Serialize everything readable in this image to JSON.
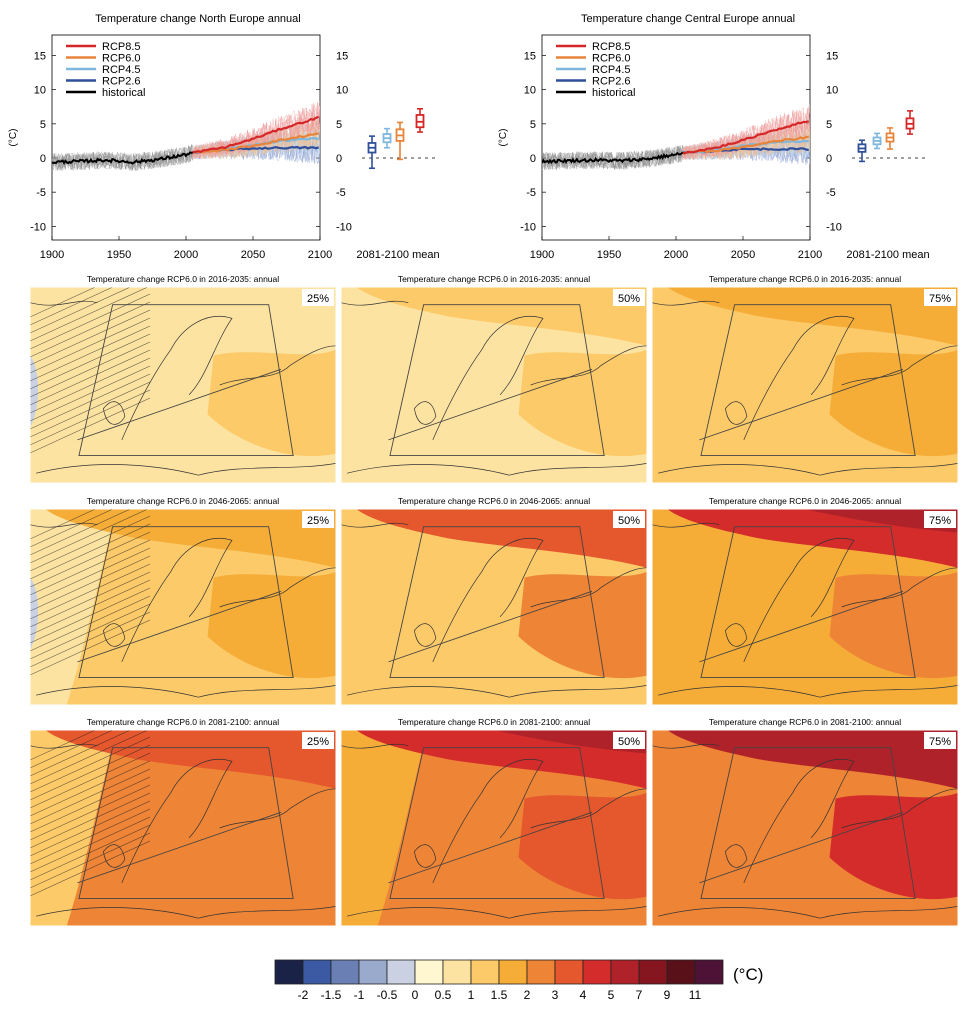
{
  "timeseries": {
    "ylabel": "(°C)",
    "yticks": [
      15,
      10,
      5,
      0,
      -5,
      -10
    ],
    "ylim": [
      -12,
      18
    ],
    "xlim": [
      1900,
      2100
    ],
    "xticks": [
      "1900",
      "1950",
      "2000",
      "2050",
      "2100"
    ],
    "box_label": "2081-2100 mean",
    "legend": [
      {
        "label": "RCP8.5",
        "color": "#d62728"
      },
      {
        "label": "RCP6.0",
        "color": "#e8843a"
      },
      {
        "label": "RCP4.5",
        "color": "#7eb8de"
      },
      {
        "label": "RCP2.6",
        "color": "#2f4f9a"
      },
      {
        "label": "historical",
        "color": "#000000"
      }
    ]
  },
  "chart_data": [
    {
      "type": "line",
      "title": "Temperature change North Europe annual",
      "ylabel": "(°C)",
      "xlim": [
        1900,
        2100
      ],
      "ylim": [
        -12,
        18
      ],
      "series": [
        {
          "name": "historical",
          "x": [
            1900,
            1920,
            1940,
            1960,
            1980,
            2000,
            2005
          ],
          "y": [
            -0.6,
            -0.5,
            -0.3,
            -0.6,
            -0.2,
            0.5,
            0.8
          ]
        },
        {
          "name": "RCP2.6",
          "x": [
            2005,
            2030,
            2050,
            2070,
            2100
          ],
          "y": [
            0.8,
            1.2,
            1.4,
            1.5,
            1.5
          ]
        },
        {
          "name": "RCP4.5",
          "x": [
            2005,
            2030,
            2050,
            2070,
            2100
          ],
          "y": [
            0.8,
            1.3,
            1.9,
            2.5,
            2.9
          ]
        },
        {
          "name": "RCP6.0",
          "x": [
            2005,
            2030,
            2050,
            2070,
            2100
          ],
          "y": [
            0.8,
            1.2,
            1.8,
            2.6,
            3.6
          ]
        },
        {
          "name": "RCP8.5",
          "x": [
            2005,
            2030,
            2050,
            2070,
            2100
          ],
          "y": [
            0.8,
            1.6,
            2.8,
            4.2,
            6.0
          ]
        }
      ],
      "boxes": [
        {
          "name": "RCP2.6",
          "min": -1.5,
          "q1": 0.8,
          "median": 1.5,
          "q3": 2.2,
          "max": 3.2
        },
        {
          "name": "RCP4.5",
          "min": 1.5,
          "q1": 2.3,
          "median": 2.9,
          "q3": 3.5,
          "max": 4.3
        },
        {
          "name": "RCP6.0",
          "min": -0.2,
          "q1": 2.5,
          "median": 3.3,
          "q3": 4.2,
          "max": 5.2
        },
        {
          "name": "RCP8.5",
          "min": 3.8,
          "q1": 4.5,
          "median": 5.3,
          "q3": 6.3,
          "max": 7.2
        }
      ]
    },
    {
      "type": "line",
      "title": "Temperature change Central Europe annual",
      "ylabel": "(°C)",
      "xlim": [
        1900,
        2100
      ],
      "ylim": [
        -12,
        18
      ],
      "series": [
        {
          "name": "historical",
          "x": [
            1900,
            1920,
            1940,
            1960,
            1980,
            2000,
            2005
          ],
          "y": [
            -0.5,
            -0.4,
            -0.3,
            -0.4,
            -0.1,
            0.5,
            0.7
          ]
        },
        {
          "name": "RCP2.6",
          "x": [
            2005,
            2030,
            2050,
            2070,
            2100
          ],
          "y": [
            0.7,
            1.1,
            1.3,
            1.3,
            1.3
          ]
        },
        {
          "name": "RCP4.5",
          "x": [
            2005,
            2030,
            2050,
            2070,
            2100
          ],
          "y": [
            0.7,
            1.2,
            1.8,
            2.2,
            2.5
          ]
        },
        {
          "name": "RCP6.0",
          "x": [
            2005,
            2030,
            2050,
            2070,
            2100
          ],
          "y": [
            0.7,
            1.1,
            1.6,
            2.3,
            3.1
          ]
        },
        {
          "name": "RCP8.5",
          "x": [
            2005,
            2030,
            2050,
            2070,
            2100
          ],
          "y": [
            0.7,
            1.5,
            2.6,
            3.9,
            5.5
          ]
        }
      ],
      "boxes": [
        {
          "name": "RCP2.6",
          "min": -0.5,
          "q1": 0.9,
          "median": 1.4,
          "q3": 2.0,
          "max": 2.6
        },
        {
          "name": "RCP4.5",
          "min": 1.4,
          "q1": 2.0,
          "median": 2.5,
          "q3": 3.0,
          "max": 3.6
        },
        {
          "name": "RCP6.0",
          "min": 1.3,
          "q1": 2.4,
          "median": 3.0,
          "q3": 3.6,
          "max": 4.4
        },
        {
          "name": "RCP8.5",
          "min": 3.5,
          "q1": 4.3,
          "median": 5.0,
          "q3": 5.8,
          "max": 6.9
        }
      ]
    },
    {
      "type": "heatmap",
      "panels": [
        {
          "title": "Temperature change RCP6.0 in 2016-2035: annual",
          "percentile": "25%",
          "south": 0.5,
          "north": 0.5,
          "east": 1.0,
          "west": 0.5,
          "hatched_west": true,
          "cold_patch": true
        },
        {
          "title": "Temperature change RCP6.0 in 2016-2035: annual",
          "percentile": "50%",
          "south": 0.5,
          "north": 1.0,
          "east": 1.0,
          "west": 0.5,
          "hatched_west": false,
          "cold_patch": false
        },
        {
          "title": "Temperature change RCP6.0 in 2016-2035: annual",
          "percentile": "75%",
          "south": 1.0,
          "north": 1.5,
          "east": 1.5,
          "west": 1.0,
          "hatched_west": false,
          "cold_patch": false
        },
        {
          "title": "Temperature change RCP6.0 in 2046-2065: annual",
          "percentile": "25%",
          "south": 1.0,
          "north": 1.5,
          "east": 1.5,
          "west": 0.5,
          "hatched_west": true,
          "cold_patch": true
        },
        {
          "title": "Temperature change RCP6.0 in 2046-2065: annual",
          "percentile": "50%",
          "south": 1.0,
          "north": 3.0,
          "east": 2.0,
          "west": 1.0,
          "hatched_west": false,
          "cold_patch": false
        },
        {
          "title": "Temperature change RCP6.0 in 2046-2065: annual",
          "percentile": "75%",
          "south": 1.5,
          "north": 4.0,
          "east": 2.0,
          "west": 1.5,
          "hatched_west": false,
          "cold_patch": false
        },
        {
          "title": "Temperature change RCP6.0 in 2081-2100: annual",
          "percentile": "25%",
          "south": 2.0,
          "north": 3.0,
          "east": 2.0,
          "west": 1.0,
          "hatched_west": true,
          "cold_patch": false
        },
        {
          "title": "Temperature change RCP6.0 in 2081-2100: annual",
          "percentile": "50%",
          "south": 2.0,
          "north": 4.0,
          "east": 3.0,
          "west": 1.5,
          "hatched_west": false,
          "cold_patch": false
        },
        {
          "title": "Temperature change RCP6.0 in 2081-2100: annual",
          "percentile": "75%",
          "south": 2.0,
          "north": 5.0,
          "east": 4.0,
          "west": 2.0,
          "hatched_west": false,
          "cold_patch": false
        }
      ]
    }
  ],
  "colorbar": {
    "unit": "(°C)",
    "colors": [
      "#1b2247",
      "#3b5aa3",
      "#6a7fb3",
      "#9aaacd",
      "#c9d1e3",
      "#fff7cf",
      "#fde3a1",
      "#fcca69",
      "#f5ad38",
      "#ee8436",
      "#e5572d",
      "#d42b2b",
      "#b0222a",
      "#85161f",
      "#5a1018",
      "#4e1236"
    ],
    "ticks": [
      "-2",
      "-1.5",
      "-1",
      "-0.5",
      "0",
      "0.5",
      "1",
      "1.5",
      "2",
      "3",
      "4",
      "5",
      "7",
      "9",
      "11"
    ],
    "bounds": [
      -2.5,
      -2,
      -1.5,
      -1,
      -0.5,
      0,
      0.5,
      1,
      1.5,
      2,
      3,
      4,
      5,
      7,
      9,
      11,
      13
    ]
  }
}
